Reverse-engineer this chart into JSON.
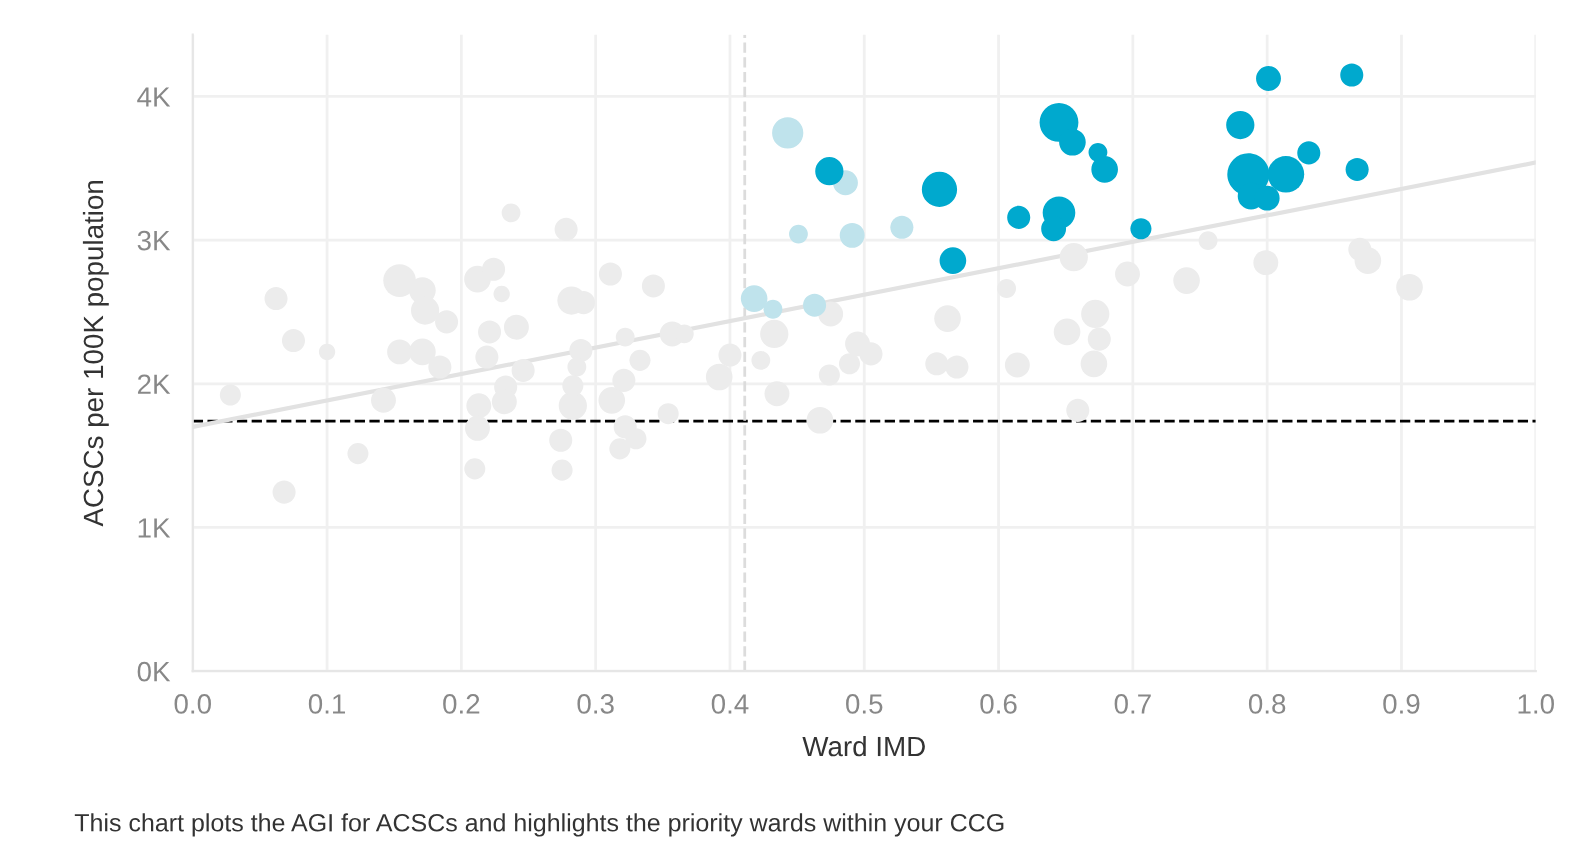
{
  "chart_data": {
    "type": "bubble",
    "xlabel": "Ward IMD",
    "ylabel": "ACSCs per 100K population",
    "annotations": [
      "This chart plots the AGI for ACSCs and highlights the priority wards within your CCG"
    ],
    "xlim": [
      0,
      1.0
    ],
    "xticks": [
      {
        "value": 0,
        "label": "0.0"
      },
      0.1,
      0.2,
      0.3,
      0.4,
      0.5,
      0.6,
      0.7,
      0.8,
      0.9,
      {
        "value": 1.0,
        "label": "1.0"
      }
    ],
    "ylim": [
      0,
      4430
    ],
    "yticks": [
      {
        "value": 0,
        "label": "0K"
      },
      {
        "value": 1000,
        "label": "1K"
      },
      {
        "value": 2000,
        "label": "2K"
      },
      {
        "value": 3000,
        "label": "3K"
      },
      {
        "value": 4000,
        "label": "4K"
      }
    ],
    "grid": true,
    "marker": "circle",
    "ref_lines": [
      {
        "axis": "y",
        "value": 1740,
        "color": "#000000",
        "line_style": "dashed"
      },
      {
        "axis": "x",
        "value": 0.411,
        "color": "#dcdcdc",
        "line_style": "dashed"
      }
    ],
    "series": [
      {
        "type": "line",
        "marker": "none",
        "color": "#e2e2e2",
        "x": [
          0,
          1.0
        ],
        "values": [
          1700,
          3540
        ]
      },
      {
        "color": "#ececec",
        "x": [
          0.062,
          0.075,
          0.1,
          0.154,
          0.171,
          0.173,
          0.189,
          0.154,
          0.171,
          0.184,
          0.212,
          0.224,
          0.23,
          0.237,
          0.221,
          0.241,
          0.219,
          0.246,
          0.233,
          0.278,
          0.282,
          0.291,
          0.311,
          0.343,
          0.289,
          0.286,
          0.322,
          0.333,
          0.357,
          0.366,
          0.4,
          0.392,
          0.423,
          0.028,
          0.068,
          0.123,
          0.142,
          0.213,
          0.212,
          0.21,
          0.232,
          0.274,
          0.275,
          0.283,
          0.283,
          0.312,
          0.321,
          0.322,
          0.33,
          0.318,
          0.354,
          0.435,
          0.656,
          0.696,
          0.74,
          0.756,
          0.799,
          0.869,
          0.875,
          0.906,
          0.606,
          0.562,
          0.672,
          0.651,
          0.675,
          0.433,
          0.475,
          0.495,
          0.505,
          0.489,
          0.474,
          0.554,
          0.569,
          0.614,
          0.671,
          0.467,
          0.659
        ],
        "values": [
          2593,
          2301,
          2222,
          2718,
          2649,
          2510,
          2431,
          2222,
          2222,
          2117,
          2728,
          2797,
          2625,
          3190,
          2361,
          2394,
          2186,
          2093,
          1978,
          3075,
          2579,
          2565,
          2764,
          2681,
          2232,
          2117,
          2325,
          2163,
          2347,
          2347,
          2200,
          2047,
          2163,
          1922,
          1246,
          1514,
          1885,
          1847,
          1690,
          1408,
          1875,
          1607,
          1399,
          1847,
          1986,
          1885,
          2024,
          1700,
          1617,
          1547,
          1792,
          1931,
          2881,
          2764,
          2718,
          2996,
          2843,
          2936,
          2857,
          2672,
          2663,
          2454,
          2486,
          2361,
          2311,
          2347,
          2486,
          2278,
          2208,
          2139,
          2061,
          2139,
          2117,
          2131,
          2139,
          1746,
          1815
        ],
        "sizes": [
          0.3,
          0.3,
          0.15,
          0.6,
          0.4,
          0.45,
          0.3,
          0.35,
          0.4,
          0.3,
          0.4,
          0.3,
          0.15,
          0.2,
          0.3,
          0.35,
          0.3,
          0.3,
          0.3,
          0.3,
          0.45,
          0.3,
          0.3,
          0.3,
          0.3,
          0.2,
          0.2,
          0.25,
          0.35,
          0.2,
          0.3,
          0.4,
          0.2,
          0.25,
          0.3,
          0.25,
          0.35,
          0.35,
          0.35,
          0.25,
          0.35,
          0.3,
          0.25,
          0.45,
          0.25,
          0.4,
          0.3,
          0.3,
          0.25,
          0.25,
          0.25,
          0.35,
          0.45,
          0.35,
          0.4,
          0.2,
          0.35,
          0.3,
          0.4,
          0.4,
          0.2,
          0.4,
          0.45,
          0.4,
          0.3,
          0.45,
          0.35,
          0.35,
          0.3,
          0.25,
          0.25,
          0.3,
          0.3,
          0.35,
          0.4,
          0.4,
          0.3
        ]
      },
      {
        "color": "#bfe3ec",
        "x": [
          0.443,
          0.486,
          0.451,
          0.491,
          0.528,
          0.418,
          0.432,
          0.463
        ],
        "values": [
          3746,
          3399,
          3042,
          3033,
          3089,
          2593,
          2519,
          2547
        ],
        "sizes": [
          0.55,
          0.35,
          0.2,
          0.35,
          0.3,
          0.4,
          0.2,
          0.3
        ]
      },
      {
        "color": "#00a9ce",
        "x": [
          0.474,
          0.556,
          0.566,
          0.615,
          0.645,
          0.655,
          0.674,
          0.679,
          0.645,
          0.641,
          0.706,
          0.78,
          0.801,
          0.863,
          0.786,
          0.814,
          0.831,
          0.867,
          0.788,
          0.8
        ],
        "values": [
          3480,
          3353,
          2857,
          3158,
          3819,
          3681,
          3611,
          3492,
          3190,
          3079,
          3079,
          3801,
          4125,
          4149,
          3458,
          3458,
          3607,
          3492,
          3306,
          3292
        ],
        "sizes": [
          0.45,
          0.7,
          0.4,
          0.3,
          0.85,
          0.4,
          0.2,
          0.4,
          0.6,
          0.35,
          0.25,
          0.45,
          0.35,
          0.3,
          1.0,
          0.75,
          0.3,
          0.3,
          0.4,
          0.35
        ]
      }
    ]
  }
}
